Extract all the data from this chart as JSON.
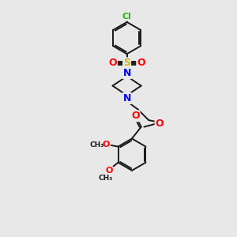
{
  "background_color": "#e8e8e8",
  "bond_color": "#1a1a1a",
  "atom_colors": {
    "Cl": "#22bb00",
    "S": "#ccbb00",
    "O": "#ff0000",
    "N": "#0000ee",
    "C": "#1a1a1a"
  },
  "figsize": [
    3.0,
    3.0
  ],
  "dpi": 100
}
